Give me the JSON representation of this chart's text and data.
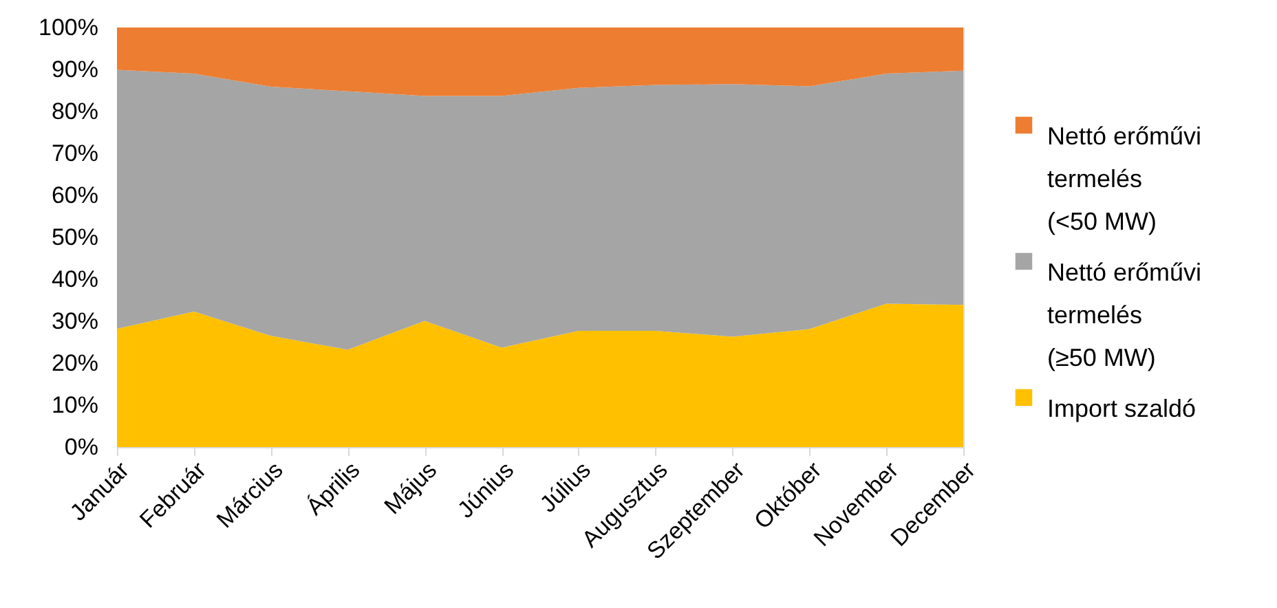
{
  "chart_data": {
    "type": "area",
    "stacked": true,
    "categories": [
      "Január",
      "Február",
      "Március",
      "Április",
      "Május",
      "Június",
      "Július",
      "Augusztus",
      "Szeptember",
      "Október",
      "November",
      "December"
    ],
    "series": [
      {
        "name": "Import szaldó",
        "color": "#ffc000",
        "values": [
          28.2,
          32.3,
          26.5,
          23.2,
          30.1,
          23.7,
          27.7,
          27.7,
          26.3,
          28.1,
          34.2,
          33.9
        ]
      },
      {
        "name": "Nettó erőművi termelés (≥50 MW)",
        "color": "#a5a5a5",
        "values": [
          61.7,
          56.7,
          59.4,
          61.6,
          53.6,
          60.0,
          57.9,
          58.6,
          60.2,
          57.9,
          54.8,
          55.8
        ]
      },
      {
        "name": "Nettó erőművi termelés (<50 MW)",
        "color": "#ed7d31",
        "values": [
          10.1,
          11.0,
          14.1,
          15.2,
          16.3,
          16.3,
          14.4,
          13.7,
          13.5,
          14.0,
          11.0,
          10.3
        ]
      }
    ],
    "ylim": [
      0,
      100
    ],
    "yticks": [
      {
        "value": 0,
        "label": "0%"
      },
      {
        "value": 10,
        "label": "10%"
      },
      {
        "value": 20,
        "label": "20%"
      },
      {
        "value": 30,
        "label": "30%"
      },
      {
        "value": 40,
        "label": "40%"
      },
      {
        "value": 50,
        "label": "50%"
      },
      {
        "value": 60,
        "label": "60%"
      },
      {
        "value": 70,
        "label": "70%"
      },
      {
        "value": 80,
        "label": "80%"
      },
      {
        "value": 90,
        "label": "90%"
      },
      {
        "value": 100,
        "label": "100%"
      }
    ],
    "grid": false,
    "legend": "right"
  }
}
